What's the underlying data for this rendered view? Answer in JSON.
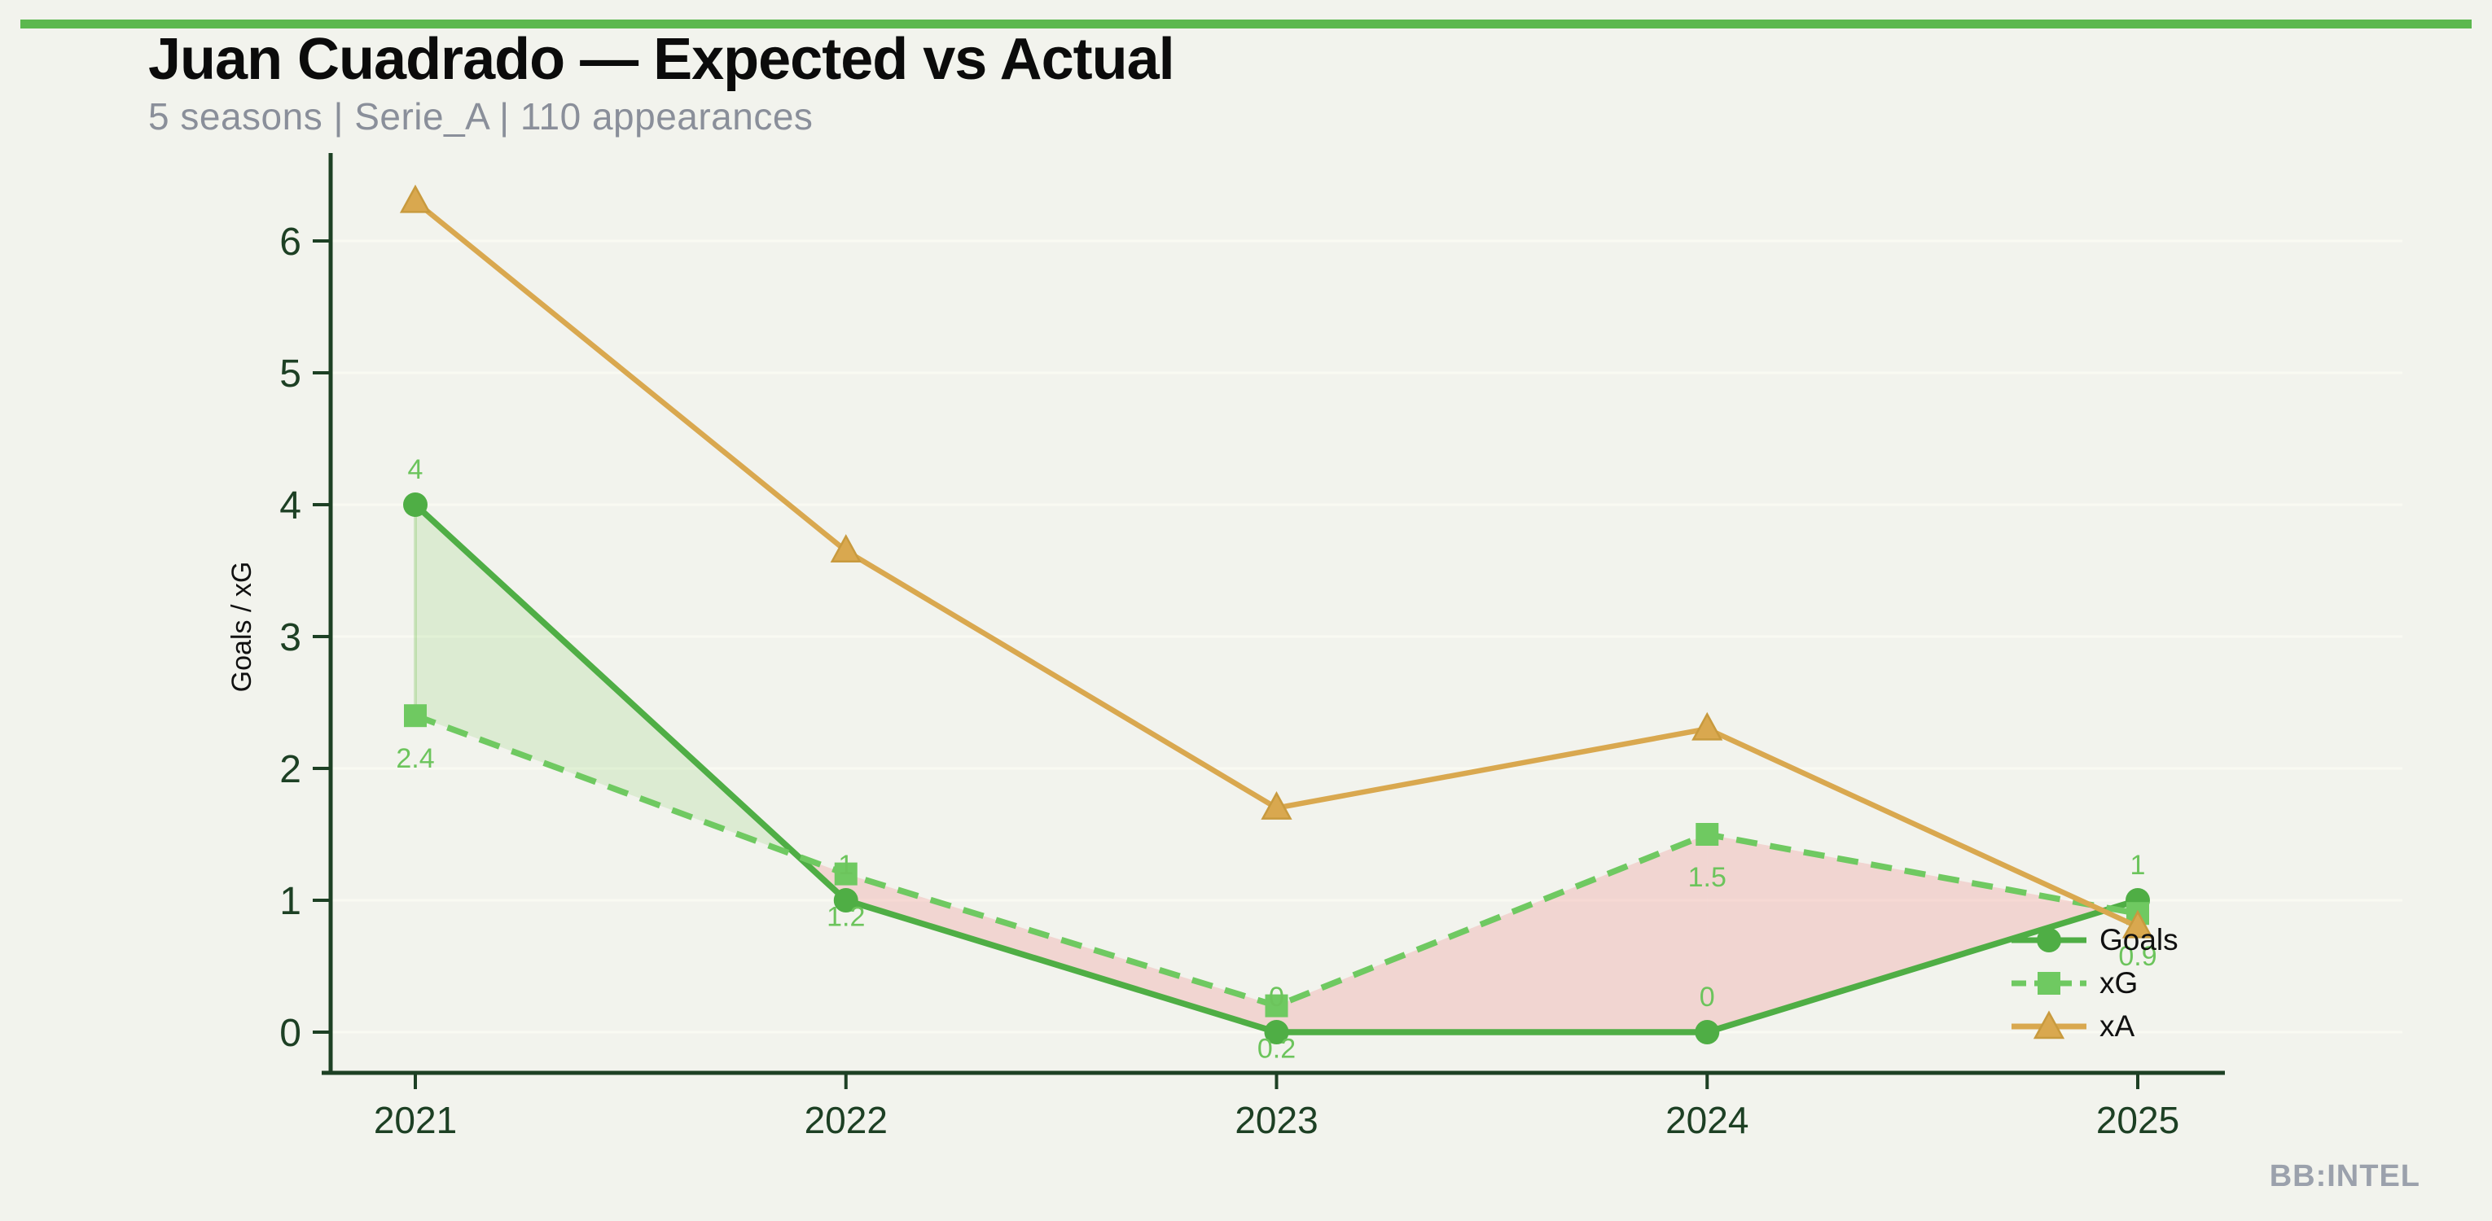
{
  "theme": {
    "accent_bar_color": "#5cb84e",
    "background_color": "#f2f3ed",
    "axis_color": "#1d4024",
    "value_label_color": "#6cc45c",
    "grid_color": "#fafbf3",
    "subtitle_color": "#8a8f9a",
    "watermark_color": "#9ba1ac"
  },
  "chart_data": {
    "type": "line",
    "title": "Juan Cuadrado — Expected vs Actual",
    "subtitle": "5 seasons | Serie_A | 110 appearances",
    "ylabel": "Goals / xG",
    "categories": [
      "2021",
      "2022",
      "2023",
      "2024",
      "2025"
    ],
    "yticks": [
      "0",
      "1",
      "2",
      "3",
      "4",
      "5",
      "6"
    ],
    "ylim": [
      0,
      6.65
    ],
    "grid": "horizontal-faint",
    "legend_position": "inside-right-bottom",
    "series": [
      {
        "name": "Goals",
        "color": "#4fae45",
        "line_style": "solid",
        "marker": "circle",
        "values": [
          4,
          1,
          0,
          0,
          1
        ],
        "point_labels": [
          "4",
          "1",
          "0",
          "0",
          "1"
        ],
        "label_side": "above"
      },
      {
        "name": "xG",
        "color": "#6fc961",
        "line_style": "dashed",
        "marker": "square",
        "values": [
          2.4,
          1.2,
          0.2,
          1.5,
          0.9
        ],
        "point_labels": [
          "2.4",
          "1.2",
          "0.2",
          "1.5",
          "0.9"
        ],
        "label_side": "below"
      },
      {
        "name": "xA",
        "color": "#d9a84f",
        "line_style": "solid",
        "marker": "triangle",
        "values": [
          6.3,
          3.65,
          1.7,
          2.3,
          0.8
        ],
        "point_labels": [
          "",
          "",
          "",
          "",
          ""
        ],
        "label_side": "none"
      }
    ],
    "fill_between": {
      "between": [
        "Goals",
        "xG"
      ],
      "above_color": "rgba(124,197,88,0.18)",
      "below_color": "rgba(240,150,150,0.32)"
    }
  },
  "footer": {
    "watermark": "BB:INTEL"
  }
}
